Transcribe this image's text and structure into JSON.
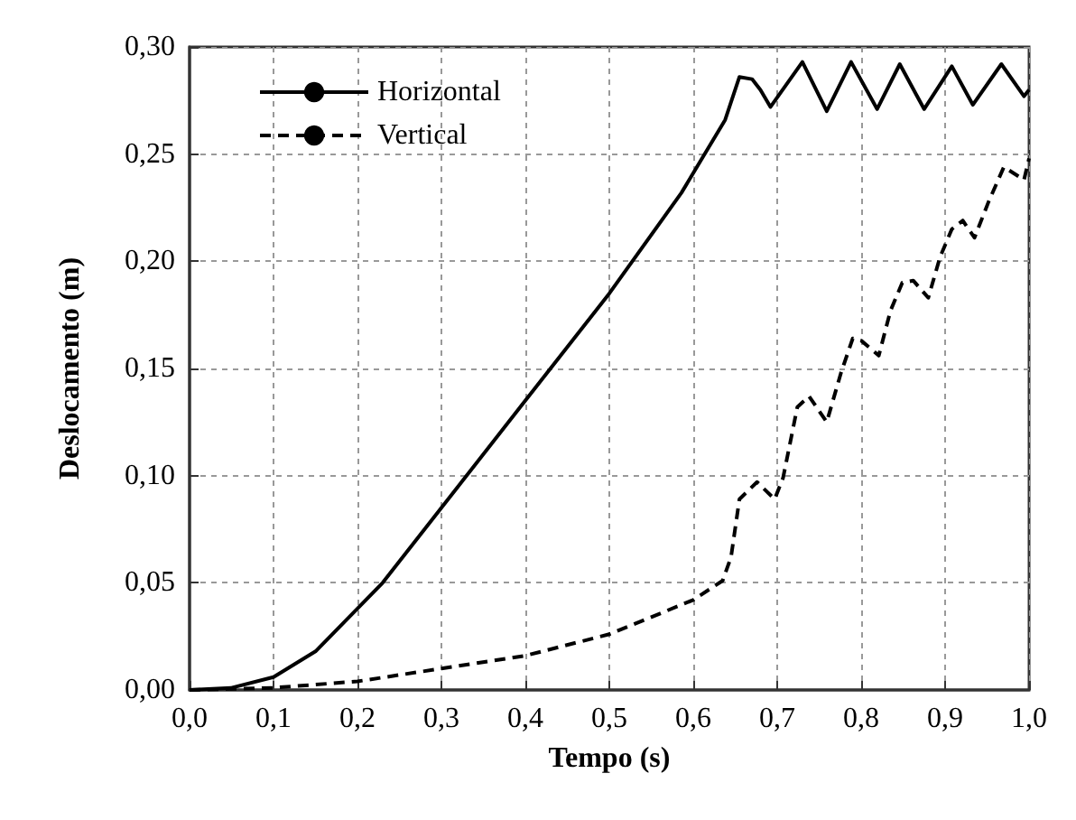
{
  "chart_data": {
    "type": "line",
    "xlabel": "Tempo (s)",
    "ylabel": "Deslocamento (m)",
    "xlim": [
      0,
      1
    ],
    "ylim": [
      0,
      0.3
    ],
    "xticks": [
      {
        "value": 0,
        "label": "0,0"
      },
      {
        "value": 0.1,
        "label": "0,1"
      },
      {
        "value": 0.2,
        "label": "0,2"
      },
      {
        "value": 0.3,
        "label": "0,3"
      },
      {
        "value": 0.4,
        "label": "0,4"
      },
      {
        "value": 0.5,
        "label": "0,5"
      },
      {
        "value": 0.6,
        "label": "0,6"
      },
      {
        "value": 0.7,
        "label": "0,7"
      },
      {
        "value": 0.8,
        "label": "0,8"
      },
      {
        "value": 0.9,
        "label": "0,9"
      },
      {
        "value": 1,
        "label": "1,0"
      }
    ],
    "yticks": [
      {
        "value": 0,
        "label": "0,00"
      },
      {
        "value": 0.05,
        "label": "0,05"
      },
      {
        "value": 0.1,
        "label": "0,10"
      },
      {
        "value": 0.15,
        "label": "0,15"
      },
      {
        "value": 0.2,
        "label": "0,20"
      },
      {
        "value": 0.25,
        "label": "0,25"
      },
      {
        "value": 0.3,
        "label": "0,30"
      }
    ],
    "grid": true,
    "legend": "top left",
    "marker": "none",
    "series": [
      {
        "name": "Horizontal",
        "color": "#000000",
        "line_style": "solid",
        "x": [
          0,
          0.05,
          0.1,
          0.15,
          0.2,
          0.23,
          0.3,
          0.4,
          0.5,
          0.586,
          0.638,
          0.655,
          0.67,
          0.68,
          0.692,
          0.73,
          0.759,
          0.788,
          0.819,
          0.846,
          0.875,
          0.908,
          0.933,
          0.967,
          0.994,
          1.0
        ],
        "values": [
          0,
          0.001,
          0.006,
          0.018,
          0.038,
          0.05,
          0.085,
          0.135,
          0.185,
          0.232,
          0.266,
          0.286,
          0.285,
          0.28,
          0.272,
          0.293,
          0.27,
          0.293,
          0.271,
          0.292,
          0.271,
          0.291,
          0.273,
          0.292,
          0.277,
          0.28
        ]
      },
      {
        "name": "Vertical",
        "color": "#000000",
        "line_style": "dashed",
        "x": [
          0,
          0.1,
          0.2,
          0.3,
          0.4,
          0.5,
          0.6,
          0.635,
          0.645,
          0.655,
          0.676,
          0.697,
          0.707,
          0.724,
          0.738,
          0.759,
          0.776,
          0.79,
          0.8,
          0.821,
          0.835,
          0.849,
          0.862,
          0.88,
          0.894,
          0.908,
          0.921,
          0.935,
          0.952,
          0.97,
          0.994,
          1.0
        ],
        "values": [
          0,
          0.001,
          0.004,
          0.01,
          0.016,
          0.026,
          0.042,
          0.051,
          0.062,
          0.089,
          0.097,
          0.089,
          0.099,
          0.132,
          0.137,
          0.125,
          0.148,
          0.164,
          0.163,
          0.156,
          0.177,
          0.19,
          0.191,
          0.183,
          0.202,
          0.215,
          0.219,
          0.211,
          0.228,
          0.244,
          0.238,
          0.248
        ]
      }
    ]
  }
}
